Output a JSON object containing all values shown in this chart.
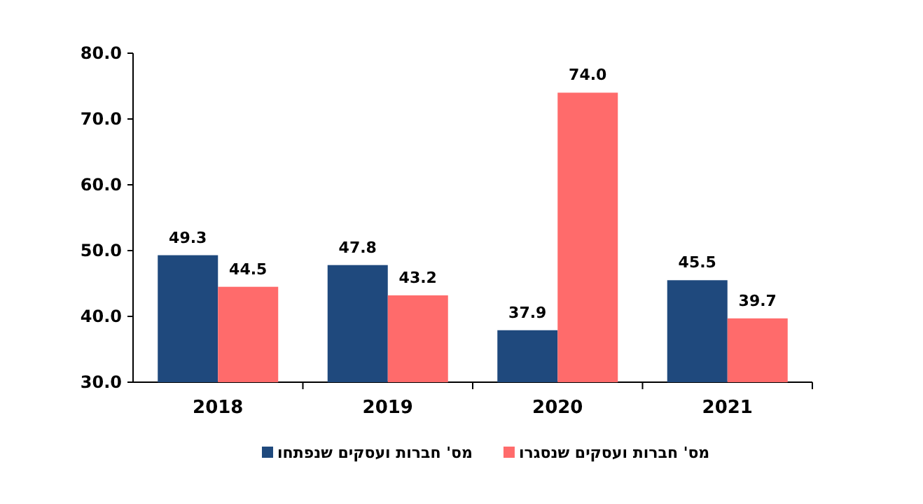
{
  "chart_data": {
    "type": "bar",
    "categories": [
      "2018",
      "2019",
      "2020",
      "2021"
    ],
    "series": [
      {
        "name": "מס' חברות ועסקים שנפתחו",
        "color": "#1f497d",
        "values": [
          49.3,
          47.8,
          37.9,
          45.5
        ],
        "value_labels": [
          "49.3",
          "47.8",
          "37.9",
          "45.5"
        ]
      },
      {
        "name": "מס' חברות ועסקים שנסגרו",
        "color": "#ff6b6b",
        "values": [
          44.5,
          43.2,
          74.0,
          39.7
        ],
        "value_labels": [
          "44.5",
          "43.2",
          "74.0",
          "39.7"
        ]
      }
    ],
    "ylim": [
      30,
      80
    ],
    "yticks": [
      {
        "value": 30,
        "label": "30.0"
      },
      {
        "value": 40,
        "label": "40.0"
      },
      {
        "value": 50,
        "label": "50.0"
      },
      {
        "value": 60,
        "label": "60.0"
      },
      {
        "value": 70,
        "label": "70.0"
      },
      {
        "value": 80,
        "label": "80.0"
      }
    ],
    "legend": "bottom",
    "grid": false
  }
}
